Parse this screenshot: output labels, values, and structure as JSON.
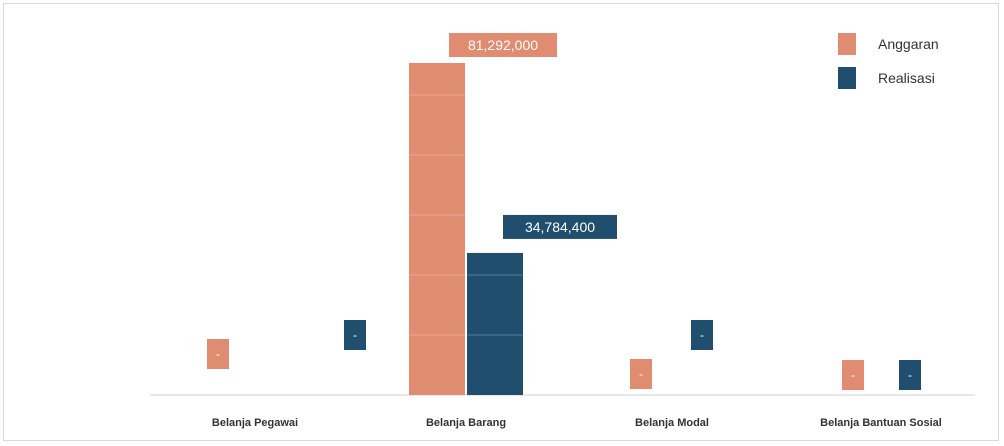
{
  "chart_data": {
    "type": "bar",
    "categories": [
      "Belanja Pegawai",
      "Belanja Barang",
      "Belanja Modal",
      "Belanja Bantuan Sosial"
    ],
    "series": [
      {
        "name": "Anggaran",
        "values": [
          0,
          81292000,
          0,
          0
        ],
        "labels": [
          "-",
          "81,292,000",
          "-",
          "-"
        ],
        "color": "#E08C70"
      },
      {
        "name": "Realisasi",
        "values": [
          0,
          34784400,
          0,
          0
        ],
        "labels": [
          "-",
          "34,784,400",
          "-",
          "-"
        ],
        "color": "#1F4E6E"
      }
    ],
    "ylim": [
      0,
      81292000
    ],
    "grid": false,
    "legend_position": "top-right"
  }
}
